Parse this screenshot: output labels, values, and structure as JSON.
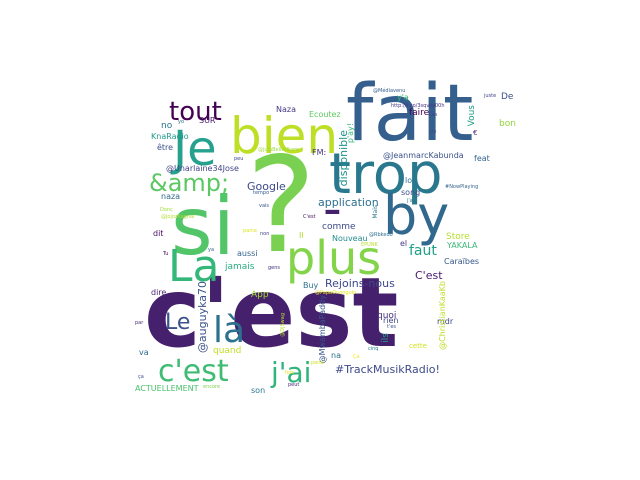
{
  "words": [
    {
      "text": "c'est",
      "color": "#44206d"
    },
    {
      "text": "?",
      "color": "#7ad151"
    },
    {
      "text": "fait",
      "color": "#355f8d"
    },
    {
      "text": "si",
      "color": "#52c569"
    },
    {
      "text": "trop",
      "color": "#2a788e"
    },
    {
      "text": "bien",
      "color": "#bddf26"
    },
    {
      "text": "by",
      "color": "#31688e"
    },
    {
      "text": "-",
      "color": "#44206d"
    },
    {
      "text": "plus",
      "color": "#84d44b"
    },
    {
      "text": "Je",
      "color": "#25a18e"
    },
    {
      "text": "La",
      "color": "#35b779"
    },
    {
      "text": "tout",
      "color": "#440154"
    },
    {
      "text": "&amp;",
      "color": "#5cc863"
    },
    {
      "text": "là",
      "color": "#2c728e"
    },
    {
      "text": "c'est",
      "color": "#3fbc73"
    },
    {
      "text": "j'ai",
      "color": "#2fb47c"
    },
    {
      "text": "Le",
      "color": "#3b528b"
    },
    {
      "text": "faut",
      "color": "#1fa088"
    },
    {
      "text": "@auguyka70",
      "color": "#3b528b"
    },
    {
      "text": "Rejoins-nous",
      "color": "#3e4989"
    },
    {
      "text": "#TrackMusikRadio!",
      "color": "#3e4a89"
    },
    {
      "text": "application",
      "color": "#2d708e"
    },
    {
      "text": "disponible",
      "color": "#20928c"
    },
    {
      "text": "Google",
      "color": "#3e4989"
    },
    {
      "text": "C'est",
      "color": "#481a6c"
    },
    {
      "text": "@JeanmarcKabunda",
      "color": "#3b528b"
    },
    {
      "text": "@Unarlaine34Jose",
      "color": "#414487"
    },
    {
      "text": "Store",
      "color": "#b5de2b"
    },
    {
      "text": "Caraïbes",
      "color": "#38598c"
    },
    {
      "text": "YAKALA",
      "color": "#3aba76"
    },
    {
      "text": "Nouveau",
      "color": "#228c8d"
    },
    {
      "text": "aussi",
      "color": "#33638d"
    },
    {
      "text": "jamais",
      "color": "#27ad81"
    },
    {
      "text": "App",
      "color": "#a5db36"
    },
    {
      "text": "quand",
      "color": "#c0df25"
    },
    {
      "text": "dire",
      "color": "#482576"
    },
    {
      "text": "Buy",
      "color": "#2c728e"
    },
    {
      "text": "comme",
      "color": "#3e4a89"
    },
    {
      "text": "quoi",
      "color": "#46327e"
    },
    {
      "text": "ils",
      "color": "#21a685"
    },
    {
      "text": "rien",
      "color": "#3f4889"
    },
    {
      "text": "mdr",
      "color": "#414487"
    },
    {
      "text": "Vous",
      "color": "#1f9e89"
    },
    {
      "text": "bon",
      "color": "#93d741"
    },
    {
      "text": "De",
      "color": "#3d4d8a"
    },
    {
      "text": "faire",
      "color": "#440154"
    },
    {
      "text": "y'a",
      "color": "#35b779"
    },
    {
      "text": "Naza",
      "color": "#443a83"
    },
    {
      "text": "naza",
      "color": "#30698e"
    },
    {
      "text": "dit",
      "color": "#471063"
    },
    {
      "text": "Il",
      "color": "#b0dd2f"
    },
    {
      "text": "Ecoutez",
      "color": "#5ec962"
    },
    {
      "text": "FM:",
      "color": "#472d7b"
    },
    {
      "text": "p'ay!",
      "color": "#35b779"
    },
    {
      "text": "va",
      "color": "#31688e"
    },
    {
      "text": "na",
      "color": "#2c728e"
    },
    {
      "text": "feat",
      "color": "#32658e"
    },
    {
      "text": "song",
      "color": "#3d4e8a"
    },
    {
      "text": "lo",
      "color": "#2d708e"
    },
    {
      "text": "el",
      "color": "#443983"
    },
    {
      "text": "SUR",
      "color": "#481769"
    },
    {
      "text": "no",
      "color": "#2a768e"
    },
    {
      "text": "KnaRadio",
      "color": "#1f9a8a"
    },
    {
      "text": "être",
      "color": "#3b528b"
    },
    {
      "text": "ACTUELLEMENT",
      "color": "#4ac16d"
    },
    {
      "text": "son",
      "color": "#297b8e"
    },
    {
      "text": "@MwambaPaddy",
      "color": "#3a548c"
    },
    {
      "text": "@ChristianKaaKb",
      "color": "#bddf26"
    },
    {
      "text": "cette",
      "color": "#d2e21b"
    },
    {
      "text": "http://t.co/3sqvky00h",
      "color": "#46337f"
    },
    {
      "text": "@Médiavenu",
      "color": "#355e8d"
    },
    {
      "text": "Mais",
      "color": "#287c8e"
    },
    {
      "text": "j'ai",
      "color": "#2a788e"
    },
    {
      "text": "juste",
      "color": "#404588"
    },
    {
      "text": "vie",
      "color": "#3e4a89"
    },
    {
      "text": "Les",
      "color": "#404387"
    },
    {
      "text": "#NowPlaying",
      "color": "#33638d"
    },
    {
      "text": "C'est",
      "color": "#471365"
    },
    {
      "text": "non",
      "color": "#414487"
    },
    {
      "text": "tempo",
      "color": "#355f8d"
    },
    {
      "text": "vais",
      "color": "#39558c"
    },
    {
      "text": "ÉPUNK",
      "color": "#b8de29"
    },
    {
      "text": "t'es",
      "color": "#3b518b"
    },
    {
      "text": "peu",
      "color": "#3f4788"
    },
    {
      "text": "gens",
      "color": "#46307e"
    },
    {
      "text": "parle",
      "color": "#d0e11c"
    },
    {
      "text": "fois",
      "color": "#e5e419"
    },
    {
      "text": "peut",
      "color": "#482677"
    },
    {
      "text": "encore",
      "color": "#7fd34e"
    },
    {
      "text": "cinq",
      "color": "#26828e"
    },
    {
      "text": "Donc",
      "color": "#a2da37"
    },
    {
      "text": "Tu",
      "color": "#46085c"
    },
    {
      "text": "par",
      "color": "#472c7a"
    },
    {
      "text": "yo",
      "color": "#306a8e"
    },
    {
      "text": "ya",
      "color": "#34618d"
    },
    {
      "text": "Ça",
      "color": "#f1e51d"
    },
    {
      "text": "ça",
      "color": "#3c4f8a"
    },
    {
      "text": "€",
      "color": "#482878"
    },
    {
      "text": "@jujuBelloUkaro",
      "color": "#9dd93b"
    },
    {
      "text": "parce",
      "color": "#dde318"
    },
    {
      "text": "@PapaOnongolo",
      "color": "#e2e418"
    },
    {
      "text": "@DjSwag",
      "color": "#bade28"
    },
    {
      "text": "@Rbkedo",
      "color": "#2e6e8e"
    },
    {
      "text": "@jojozKagnai",
      "color": "#b2dd2d"
    }
  ]
}
